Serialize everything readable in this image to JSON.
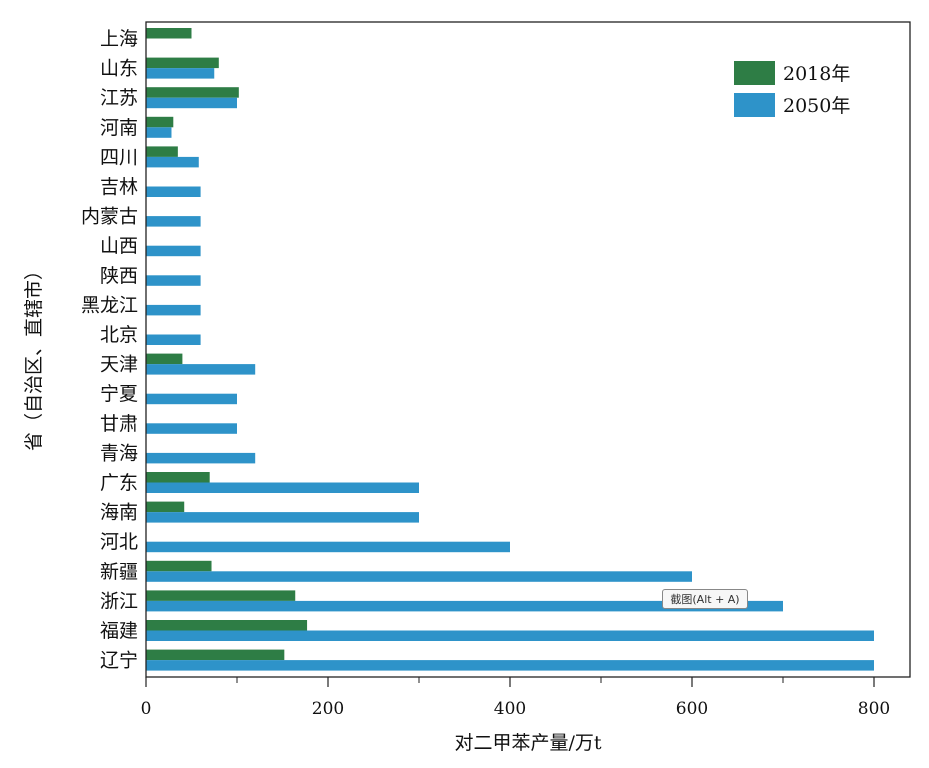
{
  "chart_data": {
    "type": "bar",
    "orientation": "horizontal",
    "xlabel": "对二甲苯产量/万t",
    "ylabel": "省（自治区、直辖市）",
    "xlim": [
      0,
      840
    ],
    "xticks": [
      0,
      200,
      400,
      600,
      800
    ],
    "grid": false,
    "legend_position": "top-right",
    "categories": [
      "上海",
      "山东",
      "江苏",
      "河南",
      "四川",
      "吉林",
      "内蒙古",
      "山西",
      "陕西",
      "黑龙江",
      "北京",
      "天津",
      "宁夏",
      "甘肃",
      "青海",
      "广东",
      "海南",
      "河北",
      "新疆",
      "浙江",
      "福建",
      "辽宁"
    ],
    "series": [
      {
        "name": "2018年",
        "color": "#2e7d45",
        "values": [
          50,
          80,
          102,
          30,
          35,
          0,
          0,
          0,
          0,
          0,
          0,
          40,
          0,
          0,
          0,
          70,
          42,
          0,
          72,
          164,
          177,
          152
        ]
      },
      {
        "name": "2050年",
        "color": "#2e93c9",
        "values": [
          0,
          75,
          100,
          28,
          58,
          60,
          60,
          60,
          60,
          60,
          60,
          120,
          100,
          100,
          120,
          300,
          300,
          400,
          600,
          700,
          800,
          800
        ]
      }
    ]
  },
  "tooltip": {
    "label": "截图(Alt + A)"
  }
}
